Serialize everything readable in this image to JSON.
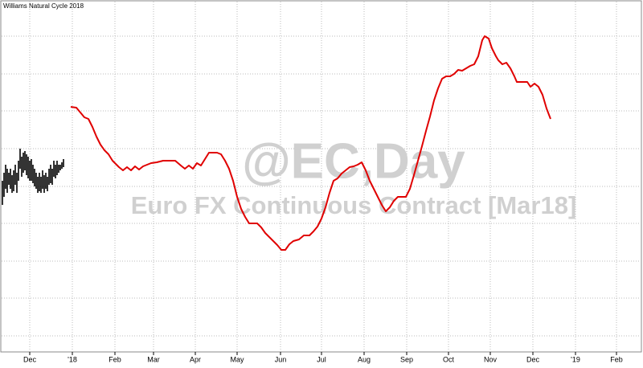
{
  "chart_data": {
    "type": "line",
    "title": "Williams Natural Cycle 2018",
    "annotations": [
      "@EC,Day",
      "Euro FX Continuous Contract [Mar18]"
    ],
    "xlim": [
      0,
      800
    ],
    "ylim": [
      0,
      438
    ],
    "grid": true,
    "xticks": [
      {
        "value": 37,
        "label": "Dec"
      },
      {
        "value": 90,
        "label": "'18"
      },
      {
        "value": 143,
        "label": "Feb"
      },
      {
        "value": 191,
        "label": "Mar"
      },
      {
        "value": 243,
        "label": "Apr"
      },
      {
        "value": 295,
        "label": "May"
      },
      {
        "value": 349,
        "label": "Jun"
      },
      {
        "value": 400,
        "label": "Jul"
      },
      {
        "value": 453,
        "label": "Aug"
      },
      {
        "value": 506,
        "label": "Sep"
      },
      {
        "value": 558,
        "label": "Oct"
      },
      {
        "value": 610,
        "label": "Nov"
      },
      {
        "value": 663,
        "label": "Dec"
      },
      {
        "value": 716,
        "label": "'19"
      },
      {
        "value": 767,
        "label": "Feb"
      }
    ],
    "ygrid": [
      20,
      67,
      113,
      160,
      206,
      253,
      300,
      346,
      393
    ],
    "series": [
      {
        "color": "#e00000",
        "x": [
          88,
          95,
          100,
          105,
          110,
          115,
          120,
          125,
          130,
          135,
          140,
          148,
          153,
          158,
          163,
          168,
          173,
          178,
          183,
          188,
          195,
          203,
          210,
          218,
          225,
          230,
          235,
          240,
          245,
          250,
          255,
          260,
          270,
          275,
          280,
          285,
          290,
          295,
          300,
          305,
          310,
          320,
          325,
          330,
          335,
          340,
          345,
          350,
          355,
          360,
          365,
          372,
          378,
          385,
          390,
          395,
          400,
          405,
          410,
          415,
          420,
          425,
          430,
          435,
          440,
          445,
          450,
          455,
          460,
          465,
          470,
          475,
          480,
          485,
          490,
          495,
          505,
          510,
          515,
          520,
          525,
          530,
          535,
          540,
          545,
          550,
          555,
          560,
          565,
          570,
          575,
          580,
          585,
          590,
          595,
          600,
          603,
          608,
          612,
          617,
          620,
          625,
          630,
          635,
          640,
          643,
          650,
          656,
          660,
          665,
          670,
          675,
          680,
          685
        ],
        "values": [
          305,
          304,
          298,
          292,
          290,
          280,
          268,
          258,
          251,
          246,
          238,
          230,
          226,
          230,
          226,
          231,
          227,
          231,
          233,
          235,
          236,
          238,
          238,
          238,
          232,
          228,
          232,
          228,
          235,
          232,
          240,
          248,
          248,
          246,
          238,
          228,
          213,
          193,
          178,
          168,
          160,
          160,
          155,
          148,
          143,
          138,
          133,
          127,
          127,
          134,
          138,
          140,
          145,
          145,
          150,
          156,
          166,
          180,
          198,
          213,
          216,
          222,
          226,
          230,
          231,
          233,
          236,
          226,
          213,
          203,
          193,
          183,
          175,
          180,
          188,
          193,
          193,
          203,
          220,
          238,
          256,
          275,
          293,
          313,
          328,
          340,
          343,
          343,
          346,
          351,
          350,
          353,
          356,
          358,
          368,
          388,
          393,
          390,
          378,
          368,
          363,
          358,
          360,
          353,
          343,
          336,
          336,
          336,
          330,
          334,
          330,
          320,
          303,
          290
        ]
      }
    ],
    "bars": {
      "color": "#000000",
      "x": [
        3,
        5,
        7,
        9,
        11,
        13,
        15,
        17,
        19,
        21,
        23,
        25,
        27,
        29,
        31,
        33,
        35,
        37,
        39,
        41,
        43,
        45,
        47,
        49,
        51,
        53,
        55,
        57,
        59,
        61,
        63,
        65,
        67,
        69,
        71,
        73,
        75,
        77,
        79
      ],
      "high": [
        213,
        223,
        233,
        228,
        223,
        228,
        220,
        226,
        233,
        223,
        238,
        253,
        243,
        248,
        250,
        246,
        243,
        238,
        240,
        233,
        228,
        223,
        218,
        223,
        218,
        226,
        220,
        223,
        218,
        228,
        233,
        228,
        238,
        233,
        238,
        233,
        233,
        236,
        240
      ],
      "low": [
        183,
        193,
        203,
        198,
        208,
        203,
        198,
        200,
        208,
        198,
        213,
        228,
        218,
        223,
        226,
        220,
        216,
        213,
        213,
        210,
        206,
        203,
        198,
        200,
        198,
        203,
        198,
        203,
        200,
        208,
        210,
        208,
        218,
        216,
        220,
        223,
        226,
        228,
        230
      ]
    }
  }
}
